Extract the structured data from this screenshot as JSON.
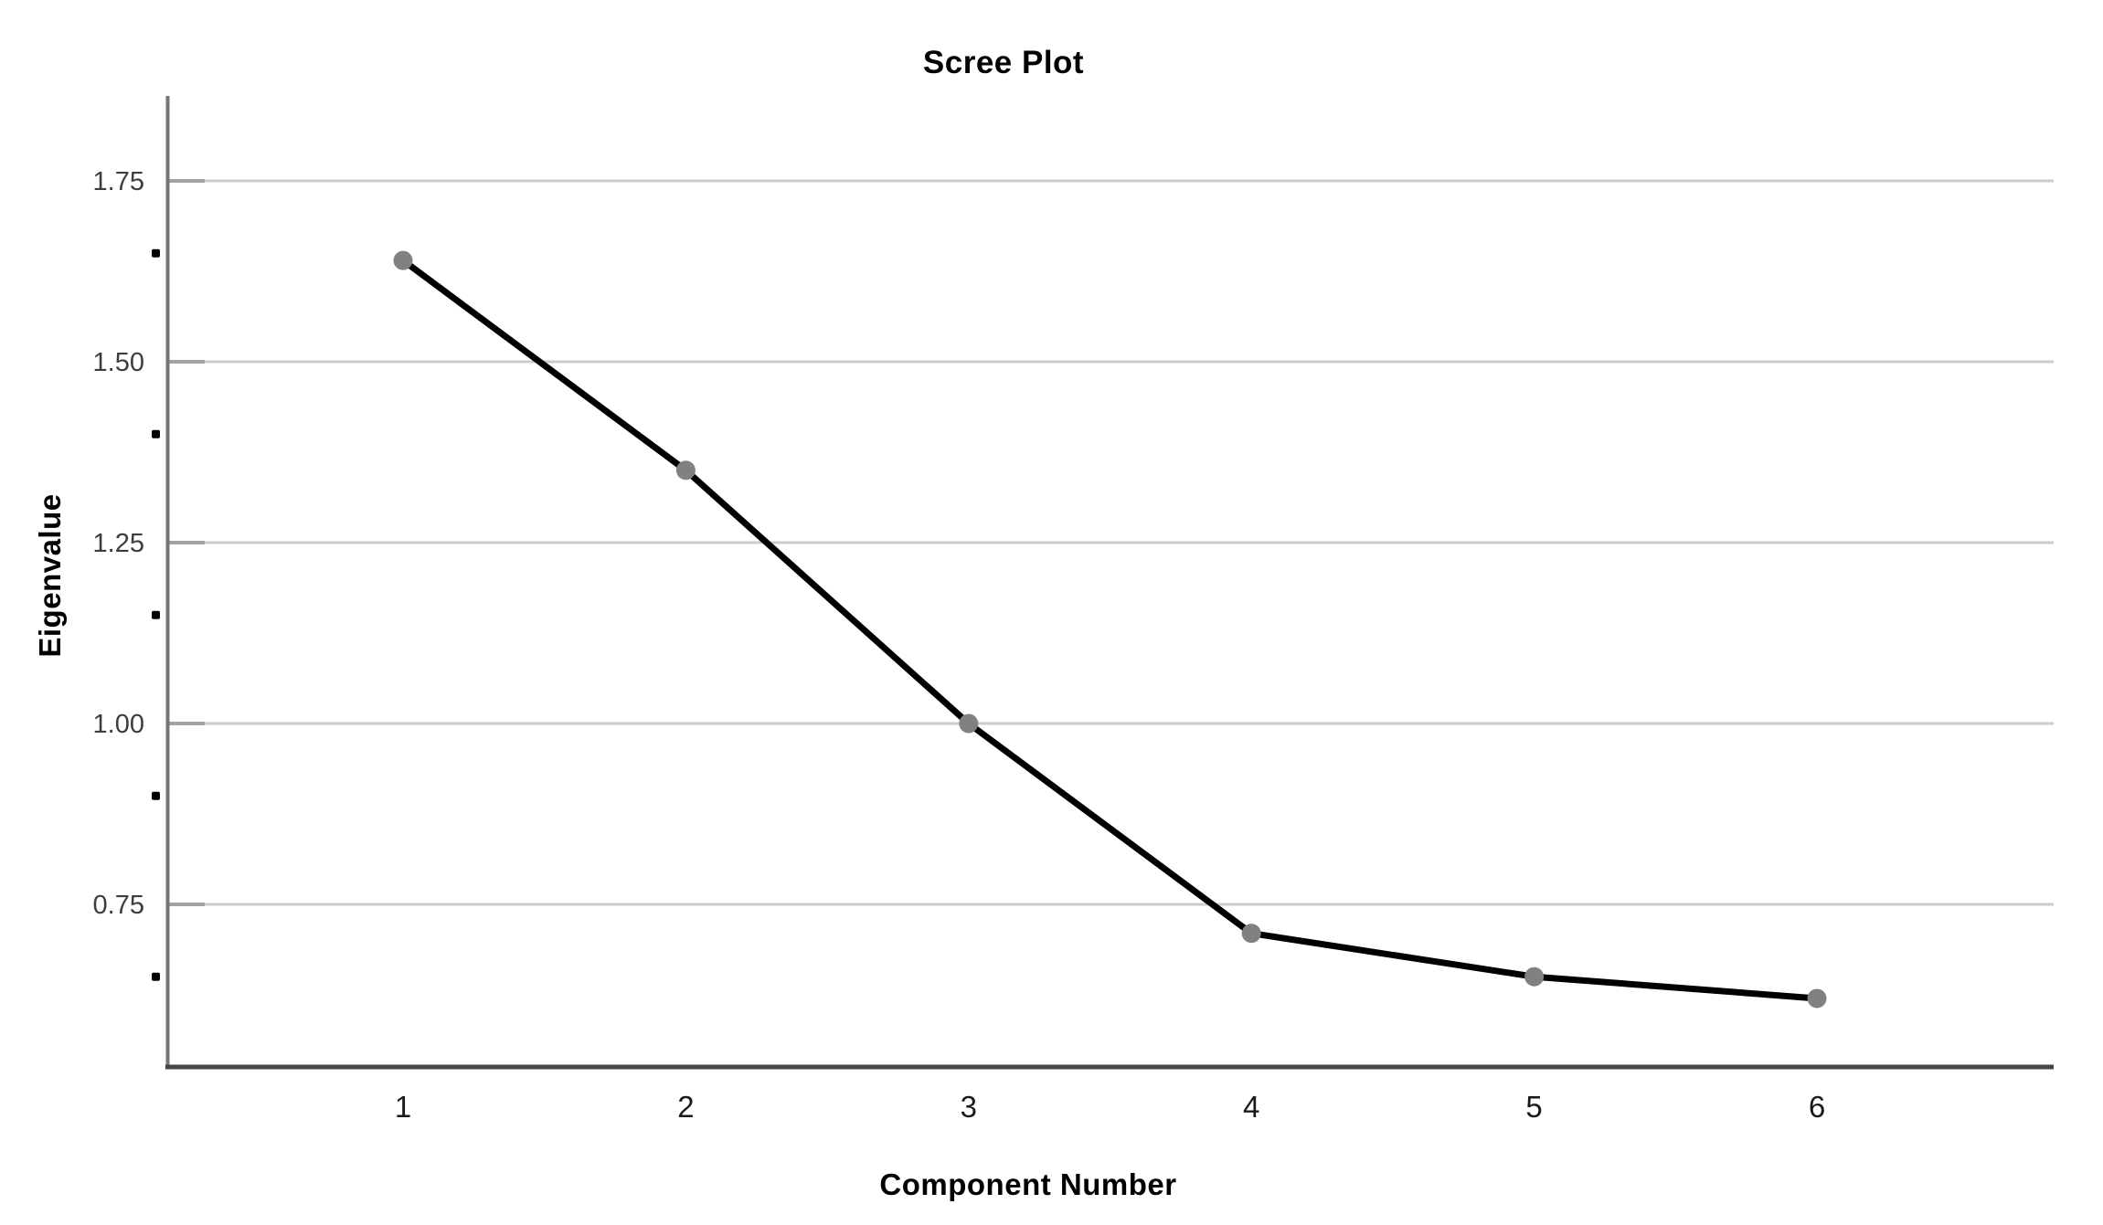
{
  "chart_data": {
    "type": "line",
    "title": "Scree Plot",
    "xlabel": "Component Number",
    "ylabel": "Eigenvalue",
    "categories": [
      1,
      2,
      3,
      4,
      5,
      6
    ],
    "x_ticks": [
      "1",
      "2",
      "3",
      "4",
      "5",
      "6"
    ],
    "series": [
      {
        "name": "Eigenvalue",
        "values": [
          1.64,
          1.35,
          1.0,
          0.71,
          0.65,
          0.62
        ]
      }
    ],
    "values": [
      1.64,
      1.35,
      1.0,
      0.71,
      0.65,
      0.62
    ],
    "y_ticks": [
      "1.75",
      "1.50",
      "1.25",
      "1.00",
      "0.75"
    ],
    "y_tick_values": [
      1.75,
      1.5,
      1.25,
      1.0,
      0.75
    ],
    "minor_tick_values": [
      1.65,
      1.4,
      1.15,
      0.9,
      0.65
    ],
    "ylim": [
      0.53,
      1.87
    ],
    "grid": "horizontal",
    "legend": "none",
    "colors": {
      "line": "#000000",
      "marker": "#818181",
      "gridline": "#cccccc",
      "major_tick": "#a3a3a3",
      "minor_tick_dot": "#000000",
      "y_axis": "#767676",
      "x_axis": "#444444",
      "y_tick_label": "#3d3d3d",
      "x_tick_label": "#1a1a1a",
      "title": "#000000"
    }
  }
}
